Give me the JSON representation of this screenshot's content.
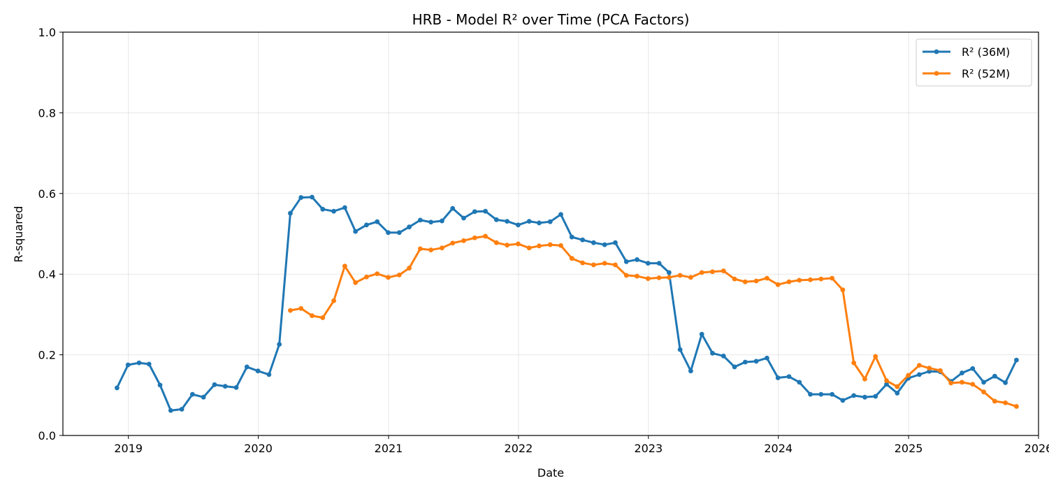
{
  "chart_data": {
    "type": "line",
    "title": "HRB - Model R² over Time (PCA Factors)",
    "xlabel": "Date",
    "ylabel": "R-squared",
    "xlim": [
      "2018-07-01",
      "2026-01-01"
    ],
    "ylim": [
      0,
      1
    ],
    "x_ticks": [
      "2019",
      "2020",
      "2021",
      "2022",
      "2023",
      "2024",
      "2025",
      "2026"
    ],
    "y_ticks": [
      "0.0",
      "0.2",
      "0.4",
      "0.6",
      "0.8",
      "1.0"
    ],
    "grid": true,
    "legend_position": "top-right",
    "series": [
      {
        "name": "R² (36M)",
        "color": "#1f77b4",
        "points": [
          [
            "2018-11-30",
            0.118
          ],
          [
            "2018-12-31",
            0.175
          ],
          [
            "2019-01-31",
            0.18
          ],
          [
            "2019-02-28",
            0.177
          ],
          [
            "2019-03-31",
            0.125
          ],
          [
            "2019-04-30",
            0.062
          ],
          [
            "2019-05-31",
            0.065
          ],
          [
            "2019-06-30",
            0.102
          ],
          [
            "2019-07-31",
            0.095
          ],
          [
            "2019-08-31",
            0.126
          ],
          [
            "2019-09-30",
            0.122
          ],
          [
            "2019-10-31",
            0.119
          ],
          [
            "2019-11-30",
            0.17
          ],
          [
            "2019-12-31",
            0.16
          ],
          [
            "2020-01-31",
            0.151
          ],
          [
            "2020-02-29",
            0.226
          ],
          [
            "2020-03-31",
            0.551
          ],
          [
            "2020-04-30",
            0.59
          ],
          [
            "2020-05-31",
            0.591
          ],
          [
            "2020-06-30",
            0.561
          ],
          [
            "2020-07-31",
            0.556
          ],
          [
            "2020-08-31",
            0.565
          ],
          [
            "2020-09-30",
            0.506
          ],
          [
            "2020-10-31",
            0.522
          ],
          [
            "2020-11-30",
            0.53
          ],
          [
            "2020-12-31",
            0.503
          ],
          [
            "2021-01-31",
            0.503
          ],
          [
            "2021-02-28",
            0.517
          ],
          [
            "2021-03-31",
            0.534
          ],
          [
            "2021-04-30",
            0.529
          ],
          [
            "2021-05-31",
            0.532
          ],
          [
            "2021-06-30",
            0.563
          ],
          [
            "2021-07-31",
            0.539
          ],
          [
            "2021-08-31",
            0.555
          ],
          [
            "2021-09-30",
            0.556
          ],
          [
            "2021-10-31",
            0.535
          ],
          [
            "2021-11-30",
            0.531
          ],
          [
            "2021-12-31",
            0.522
          ],
          [
            "2022-01-31",
            0.531
          ],
          [
            "2022-02-28",
            0.527
          ],
          [
            "2022-03-31",
            0.53
          ],
          [
            "2022-04-30",
            0.548
          ],
          [
            "2022-05-31",
            0.492
          ],
          [
            "2022-06-30",
            0.485
          ],
          [
            "2022-07-31",
            0.478
          ],
          [
            "2022-08-31",
            0.473
          ],
          [
            "2022-09-30",
            0.478
          ],
          [
            "2022-10-31",
            0.431
          ],
          [
            "2022-11-30",
            0.436
          ],
          [
            "2022-12-31",
            0.427
          ],
          [
            "2023-01-31",
            0.427
          ],
          [
            "2023-02-28",
            0.404
          ],
          [
            "2023-03-31",
            0.213
          ],
          [
            "2023-04-30",
            0.16
          ],
          [
            "2023-05-31",
            0.251
          ],
          [
            "2023-06-30",
            0.204
          ],
          [
            "2023-07-31",
            0.197
          ],
          [
            "2023-08-31",
            0.17
          ],
          [
            "2023-09-30",
            0.182
          ],
          [
            "2023-10-31",
            0.184
          ],
          [
            "2023-11-30",
            0.192
          ],
          [
            "2023-12-31",
            0.143
          ],
          [
            "2024-01-31",
            0.146
          ],
          [
            "2024-02-29",
            0.132
          ],
          [
            "2024-03-31",
            0.102
          ],
          [
            "2024-04-30",
            0.102
          ],
          [
            "2024-05-31",
            0.102
          ],
          [
            "2024-06-30",
            0.087
          ],
          [
            "2024-07-31",
            0.099
          ],
          [
            "2024-08-31",
            0.095
          ],
          [
            "2024-09-30",
            0.097
          ],
          [
            "2024-10-31",
            0.127
          ],
          [
            "2024-11-30",
            0.105
          ],
          [
            "2024-12-31",
            0.142
          ],
          [
            "2025-01-31",
            0.151
          ],
          [
            "2025-02-28",
            0.159
          ],
          [
            "2025-03-31",
            0.158
          ],
          [
            "2025-04-30",
            0.134
          ],
          [
            "2025-05-31",
            0.155
          ],
          [
            "2025-06-30",
            0.166
          ],
          [
            "2025-07-31",
            0.132
          ],
          [
            "2025-08-31",
            0.147
          ],
          [
            "2025-09-30",
            0.131
          ],
          [
            "2025-10-31",
            0.187
          ]
        ]
      },
      {
        "name": "R² (52M)",
        "color": "#ff7f0e",
        "points": [
          [
            "2020-03-31",
            0.31
          ],
          [
            "2020-04-30",
            0.315
          ],
          [
            "2020-05-31",
            0.297
          ],
          [
            "2020-06-30",
            0.292
          ],
          [
            "2020-07-31",
            0.334
          ],
          [
            "2020-08-31",
            0.42
          ],
          [
            "2020-09-30",
            0.379
          ],
          [
            "2020-10-31",
            0.393
          ],
          [
            "2020-11-30",
            0.401
          ],
          [
            "2020-12-31",
            0.392
          ],
          [
            "2021-01-31",
            0.398
          ],
          [
            "2021-02-28",
            0.415
          ],
          [
            "2021-03-31",
            0.463
          ],
          [
            "2021-04-30",
            0.46
          ],
          [
            "2021-05-31",
            0.465
          ],
          [
            "2021-06-30",
            0.477
          ],
          [
            "2021-07-31",
            0.483
          ],
          [
            "2021-08-31",
            0.49
          ],
          [
            "2021-09-30",
            0.494
          ],
          [
            "2021-10-31",
            0.478
          ],
          [
            "2021-11-30",
            0.472
          ],
          [
            "2021-12-31",
            0.475
          ],
          [
            "2022-01-31",
            0.465
          ],
          [
            "2022-02-28",
            0.47
          ],
          [
            "2022-03-31",
            0.473
          ],
          [
            "2022-04-30",
            0.471
          ],
          [
            "2022-05-31",
            0.439
          ],
          [
            "2022-06-30",
            0.428
          ],
          [
            "2022-07-31",
            0.423
          ],
          [
            "2022-08-31",
            0.427
          ],
          [
            "2022-09-30",
            0.423
          ],
          [
            "2022-10-31",
            0.397
          ],
          [
            "2022-11-30",
            0.395
          ],
          [
            "2022-12-31",
            0.389
          ],
          [
            "2023-01-31",
            0.391
          ],
          [
            "2023-02-28",
            0.392
          ],
          [
            "2023-03-31",
            0.397
          ],
          [
            "2023-04-30",
            0.392
          ],
          [
            "2023-05-31",
            0.404
          ],
          [
            "2023-06-30",
            0.406
          ],
          [
            "2023-07-31",
            0.408
          ],
          [
            "2023-08-31",
            0.388
          ],
          [
            "2023-09-30",
            0.381
          ],
          [
            "2023-10-31",
            0.383
          ],
          [
            "2023-11-30",
            0.39
          ],
          [
            "2023-12-31",
            0.374
          ],
          [
            "2024-01-31",
            0.381
          ],
          [
            "2024-02-29",
            0.385
          ],
          [
            "2024-03-31",
            0.386
          ],
          [
            "2024-04-30",
            0.388
          ],
          [
            "2024-05-31",
            0.39
          ],
          [
            "2024-06-30",
            0.361
          ],
          [
            "2024-07-31",
            0.18
          ],
          [
            "2024-08-31",
            0.14
          ],
          [
            "2024-09-30",
            0.196
          ],
          [
            "2024-10-31",
            0.136
          ],
          [
            "2024-11-30",
            0.121
          ],
          [
            "2024-12-31",
            0.149
          ],
          [
            "2025-01-31",
            0.174
          ],
          [
            "2025-02-28",
            0.167
          ],
          [
            "2025-03-31",
            0.161
          ],
          [
            "2025-04-30",
            0.13
          ],
          [
            "2025-05-31",
            0.132
          ],
          [
            "2025-06-30",
            0.127
          ],
          [
            "2025-07-31",
            0.108
          ],
          [
            "2025-08-31",
            0.085
          ],
          [
            "2025-09-30",
            0.081
          ],
          [
            "2025-10-31",
            0.072
          ]
        ]
      }
    ]
  }
}
